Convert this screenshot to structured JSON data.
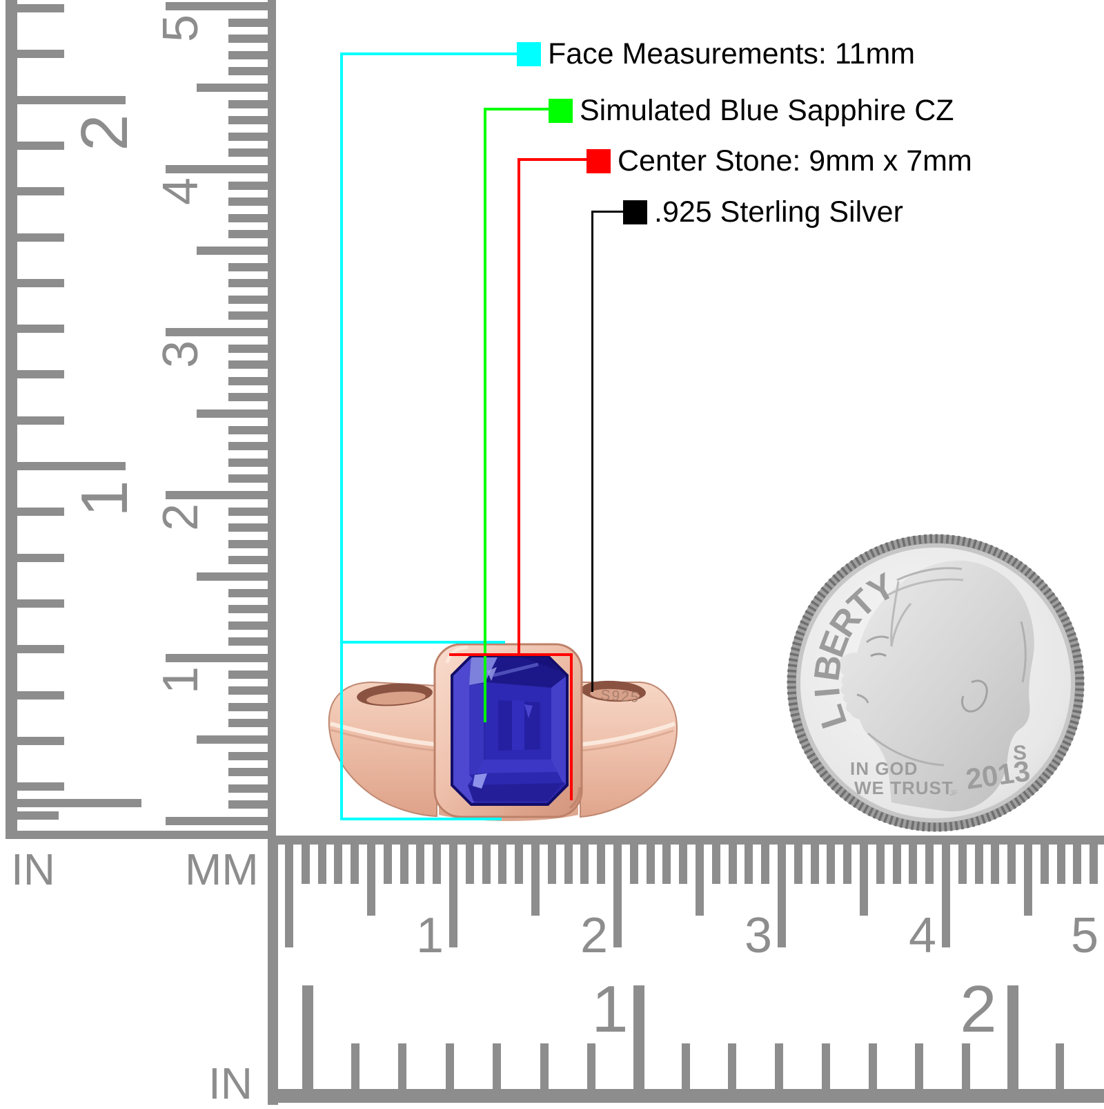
{
  "annotations": {
    "rows": [
      {
        "id": "face-measurements",
        "color": "#00ffff",
        "label": "Face Measurements: 11mm"
      },
      {
        "id": "stone-type",
        "color": "#00ff00",
        "label": "Simulated Blue Sapphire CZ"
      },
      {
        "id": "center-stone",
        "color": "#ff0000",
        "label": "Center Stone: 9mm x 7mm"
      },
      {
        "id": "metal",
        "color": "#000000",
        "label": ".925 Sterling Silver"
      }
    ]
  },
  "left_ruler": {
    "in_label": "IN",
    "mm_label": "MM",
    "in_numbers": [
      "2",
      "1"
    ],
    "mm_numbers": [
      "5",
      "4",
      "3",
      "2",
      "1"
    ]
  },
  "bottom_ruler": {
    "in_label": "IN",
    "in_numbers": [
      "1",
      "2"
    ],
    "mm_numbers": [
      "1",
      "2",
      "3",
      "4",
      "5"
    ]
  },
  "coin": {
    "legend": "LIBERTY",
    "motto_line1": "IN GOD",
    "motto_line2": "WE TRUST",
    "year": "2013",
    "mint_mark": "S",
    "designer_initials": "JF"
  },
  "ring": {
    "engraving": "S925"
  },
  "colors": {
    "ruler_gray": "#8d8d8d",
    "annotation_cyan": "#00ffff",
    "annotation_green": "#00ff00",
    "annotation_red": "#ff0000",
    "annotation_black": "#000000",
    "rose_gold": "#eab49d",
    "sapphire_blue": "#2c27ad",
    "coin_silver": "#e4e4e4"
  }
}
